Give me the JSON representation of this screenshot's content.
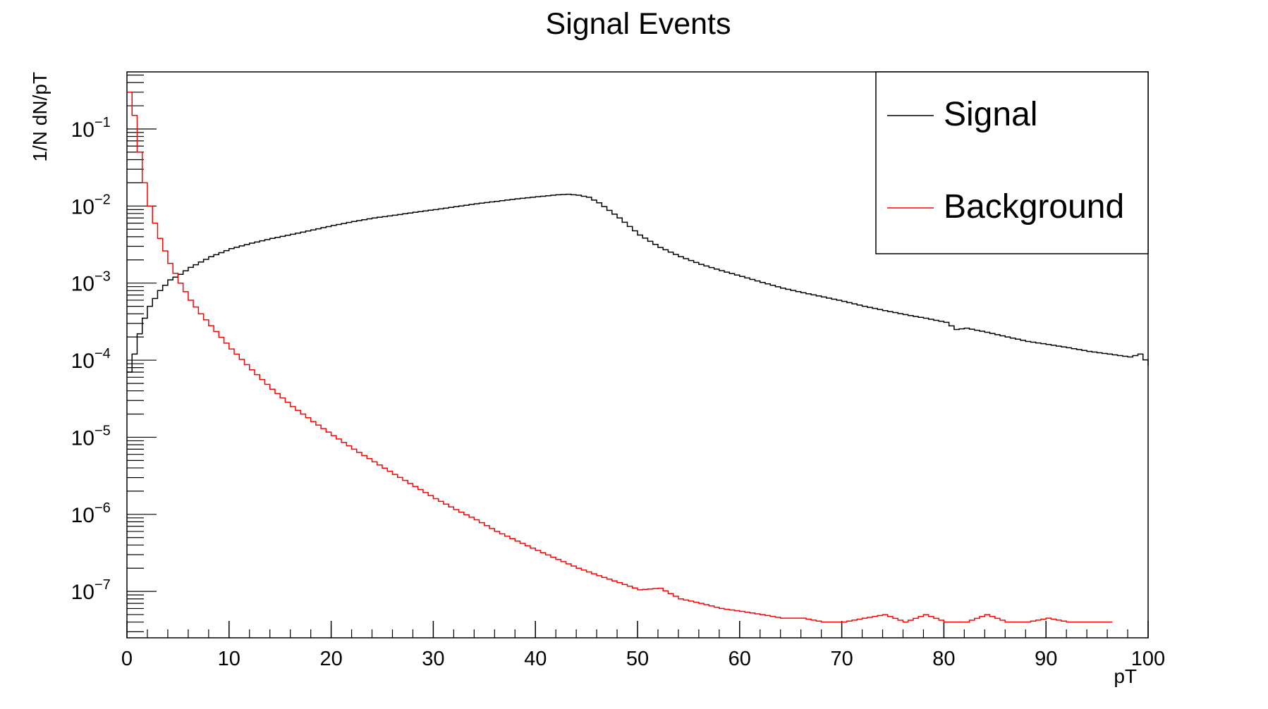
{
  "chart_data": {
    "type": "line",
    "style": "step-histogram",
    "title": "Signal Events",
    "xlabel": "pT",
    "ylabel": "1/N dN/pT",
    "xlim": [
      0,
      100
    ],
    "ylim": [
      2.5e-08,
      0.55
    ],
    "yscale": "log",
    "grid": false,
    "legend_position": "top-right",
    "x_ticks": [
      0,
      10,
      20,
      30,
      40,
      50,
      60,
      70,
      80,
      90,
      100
    ],
    "y_ticks": [
      {
        "value": 0.1,
        "base": "10",
        "exp": "−1"
      },
      {
        "value": 0.01,
        "base": "10",
        "exp": "−2"
      },
      {
        "value": 0.001,
        "base": "10",
        "exp": "−3"
      },
      {
        "value": 0.0001,
        "base": "10",
        "exp": "−4"
      },
      {
        "value": 1e-05,
        "base": "10",
        "exp": "−5"
      },
      {
        "value": 1e-06,
        "base": "10",
        "exp": "−6"
      },
      {
        "value": 1e-07,
        "base": "10",
        "exp": "−7"
      }
    ],
    "series": [
      {
        "name": "Signal",
        "color": "#000000",
        "x": [
          0,
          0.5,
          1,
          1.5,
          2,
          3,
          4,
          5,
          6,
          8,
          10,
          12,
          14,
          16,
          18,
          20,
          22,
          24,
          26,
          28,
          30,
          32,
          34,
          36,
          38,
          40,
          42,
          43,
          44,
          45,
          46,
          48,
          50,
          52,
          54,
          56,
          58,
          60,
          62,
          64,
          66,
          68,
          70,
          72,
          74,
          76,
          78,
          80,
          81,
          82,
          84,
          86,
          88,
          90,
          92,
          94,
          96,
          98,
          99,
          100
        ],
        "values": [
          7e-05,
          0.00012,
          0.00022,
          0.00035,
          0.0005,
          0.0008,
          0.0011,
          0.0013,
          0.0016,
          0.0022,
          0.0028,
          0.0033,
          0.0038,
          0.0043,
          0.0049,
          0.0056,
          0.0063,
          0.007,
          0.0076,
          0.0083,
          0.009,
          0.0098,
          0.0107,
          0.0115,
          0.0124,
          0.0132,
          0.014,
          0.0142,
          0.0138,
          0.013,
          0.011,
          0.007,
          0.0042,
          0.0029,
          0.0022,
          0.00175,
          0.00145,
          0.00122,
          0.00102,
          0.00086,
          0.00075,
          0.00066,
          0.00058,
          0.0005,
          0.00044,
          0.00039,
          0.00035,
          0.00031,
          0.00025,
          0.00026,
          0.00023,
          0.0002,
          0.000175,
          0.00016,
          0.000145,
          0.00013,
          0.00012,
          0.00011,
          0.00012,
          8.5e-05
        ]
      },
      {
        "name": "Background",
        "color": "#ff0000",
        "x": [
          0,
          0.5,
          1,
          1.5,
          2,
          2.5,
          3,
          4,
          5,
          6,
          7,
          8,
          10,
          12,
          14,
          16,
          18,
          20,
          22,
          24,
          26,
          28,
          30,
          32,
          34,
          36,
          38,
          40,
          42,
          44,
          46,
          48,
          50,
          52,
          54,
          56,
          58,
          60,
          62,
          64,
          66,
          68,
          70,
          72,
          74,
          76,
          78,
          80,
          82,
          84,
          86,
          88,
          90,
          92,
          94,
          96
        ],
        "values": [
          0.3,
          0.15,
          0.05,
          0.02,
          0.01,
          0.006,
          0.0038,
          0.0018,
          0.001,
          0.0006,
          0.0004,
          0.00028,
          0.00014,
          7.5e-05,
          4.2e-05,
          2.5e-05,
          1.6e-05,
          1.05e-05,
          7e-06,
          4.8e-06,
          3.3e-06,
          2.3e-06,
          1.6e-06,
          1.15e-06,
          8.5e-07,
          6e-07,
          4.5e-07,
          3.4e-07,
          2.6e-07,
          2e-07,
          1.6e-07,
          1.3e-07,
          1.05e-07,
          1.1e-07,
          8e-08,
          7e-08,
          6e-08,
          5.5e-08,
          5e-08,
          4.5e-08,
          4.5e-08,
          4e-08,
          4e-08,
          4.5e-08,
          5e-08,
          4e-08,
          5e-08,
          4e-08,
          4e-08,
          5e-08,
          4e-08,
          4e-08,
          4.5e-08,
          4e-08,
          4e-08,
          4e-08
        ]
      }
    ]
  }
}
